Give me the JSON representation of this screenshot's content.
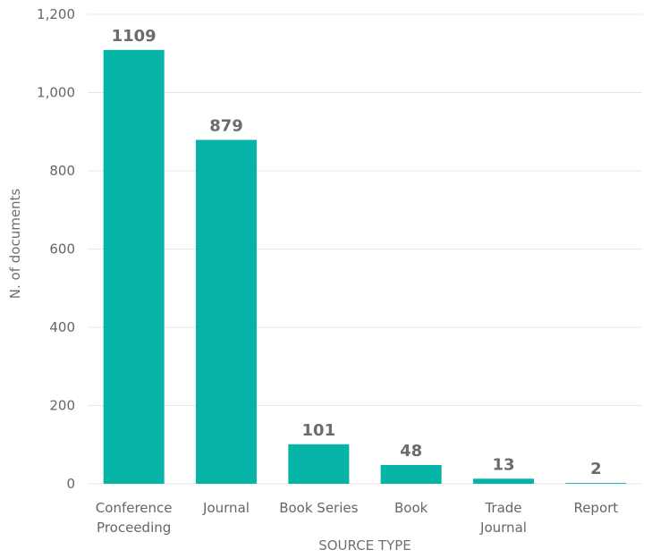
{
  "chart_data": {
    "type": "bar",
    "categories": [
      [
        "Conference",
        "Proceeding"
      ],
      [
        "Journal"
      ],
      [
        "Book Series"
      ],
      [
        "Book"
      ],
      [
        "Trade",
        "Journal"
      ],
      [
        "Report"
      ]
    ],
    "values": [
      1109,
      879,
      101,
      48,
      13,
      2
    ],
    "data_labels": [
      "1109",
      "879",
      "101",
      "48",
      "13",
      "2"
    ],
    "xlabel": "SOURCE TYPE",
    "ylabel": "N. of documents",
    "ylim": [
      0,
      1200
    ],
    "yticks": [
      0,
      200,
      400,
      600,
      800,
      1000,
      1200
    ],
    "ytick_labels": [
      "0",
      "200",
      "400",
      "600",
      "800",
      "1,000",
      "1,200"
    ],
    "grid": true,
    "bar_color": "#06b3a7"
  }
}
